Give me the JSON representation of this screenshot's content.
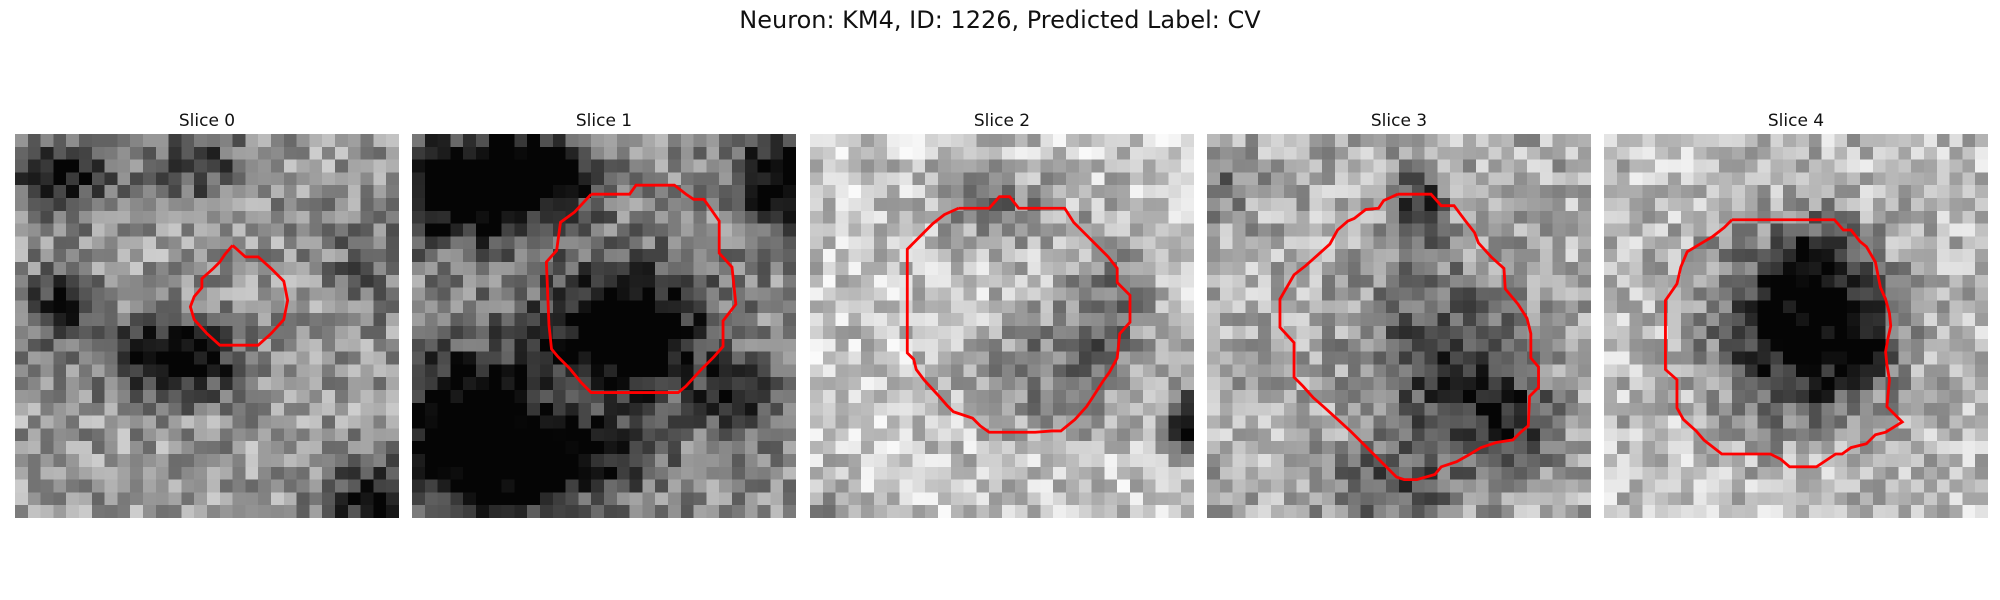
{
  "figure": {
    "title": "Neuron: KM4, ID: 1226, Predicted Label: CV"
  },
  "panels": [
    {
      "title": "Slice 0"
    },
    {
      "title": "Slice 1"
    },
    {
      "title": "Slice 2"
    },
    {
      "title": "Slice 3"
    },
    {
      "title": "Slice 4"
    }
  ],
  "colors": {
    "contour": "#ff0000",
    "background": "#ffffff"
  }
}
